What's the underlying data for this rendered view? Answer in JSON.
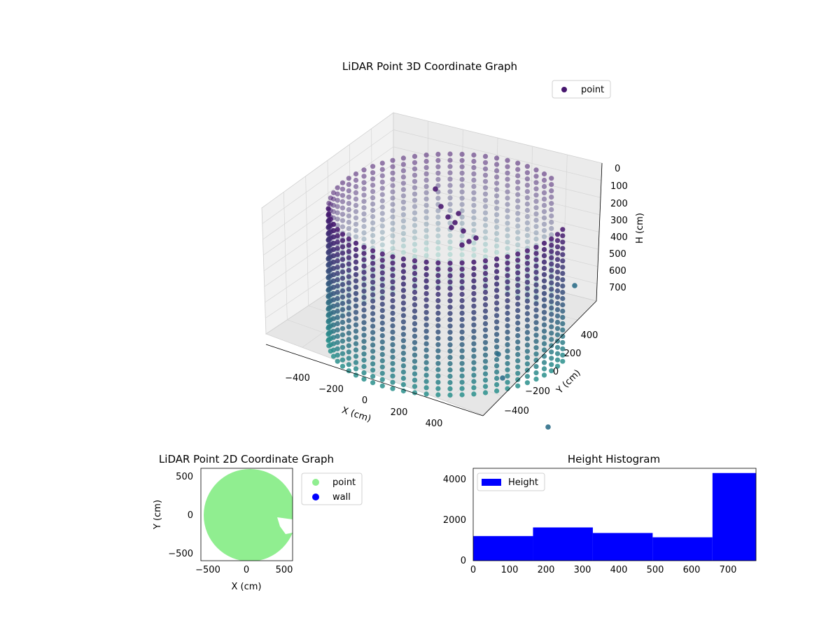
{
  "colors": {
    "top_purple": "#46166e",
    "mid_teal": "#2a8f8c",
    "light_teal": "#9ccfc9",
    "point_green": "#90ee90",
    "wall_blue": "#0000ff",
    "hist_blue": "#0000ff",
    "pane_grey": "#f2f2f2",
    "grid_grey": "#d9d9d9"
  },
  "chart_data": [
    {
      "type": "scatter",
      "title": "LiDAR Point 3D Coordinate Graph",
      "xlabel": "X (cm)",
      "ylabel": "Y (cm)",
      "zlabel": "H (cm)",
      "x_ticks": [
        "−400",
        "−200",
        "0",
        "200",
        "400"
      ],
      "y_ticks": [
        "−400",
        "−200",
        "0",
        "200",
        "400"
      ],
      "z_ticks": [
        "0",
        "100",
        "200",
        "300",
        "400",
        "500",
        "600",
        "700"
      ],
      "xlim": [
        -550,
        550
      ],
      "ylim": [
        -550,
        550
      ],
      "zlim": [
        0,
        780
      ],
      "z_inverted": true,
      "grid": true,
      "legend": {
        "placement": "top-right",
        "entries": [
          "point"
        ]
      },
      "series": [
        {
          "name": "point",
          "shape": "cylindrical wall",
          "radius": 480,
          "height_range": [
            0,
            780
          ],
          "gap_angle_range_deg": [
            -30,
            20
          ]
        }
      ]
    },
    {
      "type": "scatter",
      "title": "LiDAR Point 2D Coordinate Graph",
      "xlabel": "X (cm)",
      "ylabel": "Y (cm)",
      "x_ticks": [
        "−500",
        "0",
        "500"
      ],
      "y_ticks": [
        "500",
        "0",
        "−500"
      ],
      "xlim": [
        -600,
        600
      ],
      "ylim": [
        -600,
        600
      ],
      "legend": {
        "placement": "outside-right",
        "entries": [
          "point",
          "wall"
        ]
      },
      "series": [
        {
          "name": "point",
          "shape": "filled disc",
          "center": [
            0,
            0
          ],
          "radius": 600
        },
        {
          "name": "wall",
          "values": []
        }
      ]
    },
    {
      "type": "bar",
      "title": "Height Histogram",
      "x_ticks": [
        "0",
        "100",
        "200",
        "300",
        "400",
        "500",
        "600",
        "700"
      ],
      "y_ticks": [
        "0",
        "2000",
        "4000"
      ],
      "xlim": [
        0,
        780
      ],
      "ylim": [
        0,
        4500
      ],
      "legend": {
        "placement": "top-left",
        "entries": [
          "Height"
        ]
      },
      "bins": [
        {
          "start": 0,
          "end": 165,
          "value": 1200
        },
        {
          "start": 165,
          "end": 330,
          "value": 1620
        },
        {
          "start": 330,
          "end": 495,
          "value": 1350
        },
        {
          "start": 495,
          "end": 660,
          "value": 1140
        },
        {
          "start": 660,
          "end": 780,
          "value": 4270
        }
      ]
    }
  ]
}
